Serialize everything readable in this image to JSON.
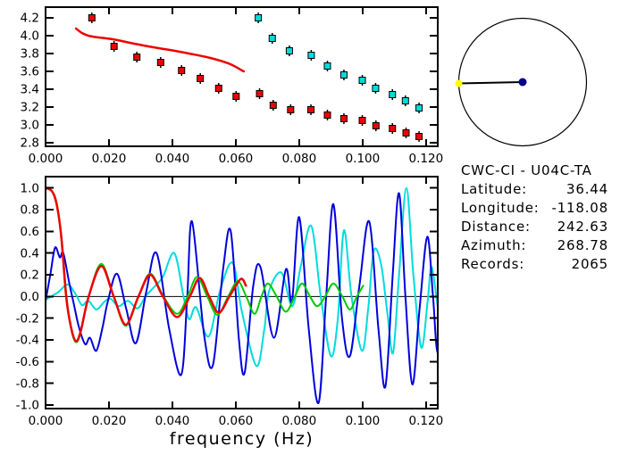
{
  "colors": {
    "red": "#ee0000",
    "green": "#00cc00",
    "blue": "#0000dd",
    "cyan": "#00dcdc",
    "black": "#000000",
    "event_dot": "#00008b",
    "station_dot": "#ffff00"
  },
  "station_info": {
    "title": "CWC-CI - U04C-TA",
    "rows": [
      {
        "label": "Latitude:",
        "value": "36.44"
      },
      {
        "label": "Longitude:",
        "value": "-118.08"
      },
      {
        "label": "Distance:",
        "value": "242.63"
      },
      {
        "label": "Azimuth:",
        "value": "268.78"
      },
      {
        "label": "Records:",
        "value": "2065"
      }
    ]
  },
  "map_panel": {
    "azimuth_deg": 268.78,
    "circle_color": "#000000",
    "event_dot_color": "#00008b",
    "station_dot_color": "#ffff00"
  },
  "chart_data": [
    {
      "id": "dispersion",
      "type": "scatter",
      "title": "",
      "xlabel": "",
      "ylabel": "",
      "xlim": [
        0,
        0.1237
      ],
      "ylim": [
        2.76,
        4.32
      ],
      "grid": false,
      "xticks": [
        {
          "v": 0.0,
          "label": "0.000"
        },
        {
          "v": 0.02,
          "label": "0.020"
        },
        {
          "v": 0.04,
          "label": "0.040"
        },
        {
          "v": 0.06,
          "label": "0.060"
        },
        {
          "v": 0.08,
          "label": "0.080"
        },
        {
          "v": 0.1,
          "label": "0.100"
        },
        {
          "v": 0.12,
          "label": "0.120"
        }
      ],
      "yticks": [
        {
          "v": 4.2,
          "label": "4.2"
        },
        {
          "v": 4.0,
          "label": "4.0"
        },
        {
          "v": 3.8,
          "label": "3.8"
        },
        {
          "v": 3.6,
          "label": "3.6"
        },
        {
          "v": 3.4,
          "label": "3.4"
        },
        {
          "v": 3.2,
          "label": "3.2"
        },
        {
          "v": 3.0,
          "label": "3.0"
        },
        {
          "v": 2.8,
          "label": "2.8"
        }
      ],
      "series": [
        {
          "name": "model-dispersion-curve",
          "type": "line",
          "color": "#ee0000",
          "stroke_width": 2.5,
          "points": [
            [
              0.0096,
              4.08
            ],
            [
              0.0115,
              4.03
            ],
            [
              0.014,
              3.995
            ],
            [
              0.018,
              3.975
            ],
            [
              0.022,
              3.955
            ],
            [
              0.028,
              3.91
            ],
            [
              0.034,
              3.87
            ],
            [
              0.04,
              3.835
            ],
            [
              0.046,
              3.795
            ],
            [
              0.052,
              3.75
            ],
            [
              0.058,
              3.685
            ],
            [
              0.0625,
              3.6
            ]
          ]
        },
        {
          "name": "measured-group-velocity-red",
          "type": "square-markers",
          "color": "#ee0000",
          "points": [
            [
              0.0146,
              4.2
            ],
            [
              0.0216,
              3.88
            ],
            [
              0.0288,
              3.76
            ],
            [
              0.0363,
              3.7
            ],
            [
              0.0429,
              3.61
            ],
            [
              0.0488,
              3.52
            ],
            [
              0.0546,
              3.41
            ],
            [
              0.0601,
              3.32
            ],
            [
              0.0675,
              3.35
            ],
            [
              0.0718,
              3.22
            ],
            [
              0.0773,
              3.17
            ],
            [
              0.0837,
              3.17
            ],
            [
              0.0889,
              3.11
            ],
            [
              0.0941,
              3.07
            ],
            [
              0.0999,
              3.05
            ],
            [
              0.1042,
              2.99
            ],
            [
              0.1094,
              2.96
            ],
            [
              0.1137,
              2.91
            ],
            [
              0.1178,
              2.87
            ]
          ]
        },
        {
          "name": "measured-group-velocity-cyan",
          "type": "square-markers",
          "color": "#00dcdc",
          "points": [
            [
              0.0671,
              4.2
            ],
            [
              0.0715,
              3.97
            ],
            [
              0.0769,
              3.83
            ],
            [
              0.0838,
              3.78
            ],
            [
              0.0889,
              3.66
            ],
            [
              0.0941,
              3.56
            ],
            [
              0.0999,
              3.5
            ],
            [
              0.1041,
              3.41
            ],
            [
              0.1094,
              3.34
            ],
            [
              0.1135,
              3.27
            ],
            [
              0.1178,
              3.19
            ]
          ]
        }
      ]
    },
    {
      "id": "spectra",
      "type": "line",
      "title": "",
      "xlabel": "frequency (Hz)",
      "ylabel": "",
      "xlim": [
        0,
        0.1237
      ],
      "ylim": [
        -1.033,
        1.104
      ],
      "zero_line": true,
      "grid": false,
      "xticks": [
        {
          "v": 0.0,
          "label": "0.000"
        },
        {
          "v": 0.02,
          "label": "0.020"
        },
        {
          "v": 0.04,
          "label": "0.040"
        },
        {
          "v": 0.06,
          "label": "0.060"
        },
        {
          "v": 0.08,
          "label": "0.080"
        },
        {
          "v": 0.1,
          "label": "0.100"
        },
        {
          "v": 0.12,
          "label": "0.120"
        }
      ],
      "yticks": [
        {
          "v": 1.0,
          "label": "1.0"
        },
        {
          "v": 0.8,
          "label": "0.8"
        },
        {
          "v": 0.6,
          "label": "0.6"
        },
        {
          "v": 0.4,
          "label": "0.4"
        },
        {
          "v": 0.2,
          "label": "0.2"
        },
        {
          "v": 0.0,
          "label": "0.0"
        },
        {
          "v": -0.2,
          "label": "-0.2"
        },
        {
          "v": -0.4,
          "label": "-0.4"
        },
        {
          "v": -0.6,
          "label": "-0.6"
        },
        {
          "v": -0.8,
          "label": "-0.8"
        },
        {
          "v": -1.0,
          "label": "-1.0"
        }
      ],
      "series": [
        {
          "name": "spectrum-cyan",
          "type": "line",
          "color": "#00dcdc",
          "stroke_width": 2,
          "points": [
            [
              0,
              -0.03
            ],
            [
              0.004,
              0.04
            ],
            [
              0.007,
              0.11
            ],
            [
              0.0095,
              0.02
            ],
            [
              0.0115,
              -0.08
            ],
            [
              0.0135,
              -0.04
            ],
            [
              0.016,
              -0.12
            ],
            [
              0.0185,
              -0.05
            ],
            [
              0.0205,
              -0.02
            ],
            [
              0.023,
              -0.09
            ],
            [
              0.026,
              -0.04
            ],
            [
              0.029,
              -0.11
            ],
            [
              0.0315,
              0.0
            ],
            [
              0.034,
              0.08
            ],
            [
              0.037,
              0.18
            ],
            [
              0.0406,
              0.4
            ],
            [
              0.0435,
              0.0
            ],
            [
              0.0453,
              -0.21
            ],
            [
              0.0475,
              -0.1
            ],
            [
              0.0514,
              -0.37
            ],
            [
              0.055,
              0.05
            ],
            [
              0.059,
              0.31
            ],
            [
              0.062,
              -0.15
            ],
            [
              0.0665,
              -0.64
            ],
            [
              0.069,
              -0.3
            ],
            [
              0.0705,
              0.05
            ],
            [
              0.0744,
              0.22
            ],
            [
              0.0778,
              -0.09
            ],
            [
              0.0805,
              0.28
            ],
            [
              0.0838,
              0.65
            ],
            [
              0.0868,
              0.0
            ],
            [
              0.09,
              -0.55
            ],
            [
              0.0922,
              -0.2
            ],
            [
              0.0941,
              0.61
            ],
            [
              0.0965,
              0.0
            ],
            [
              0.0998,
              -0.5
            ],
            [
              0.1018,
              -0.1
            ],
            [
              0.1035,
              0.42
            ],
            [
              0.1058,
              0.3
            ],
            [
              0.1078,
              -0.15
            ],
            [
              0.1096,
              -0.52
            ],
            [
              0.1115,
              0.2
            ],
            [
              0.1138,
              1.0
            ],
            [
              0.116,
              0.2
            ],
            [
              0.1185,
              -0.47
            ],
            [
              0.1205,
              -0.05
            ],
            [
              0.1218,
              0.27
            ],
            [
              0.1243,
              -0.2
            ],
            [
              0.126,
              -0.12
            ]
          ]
        },
        {
          "name": "spectrum-blue",
          "type": "line",
          "color": "#0000dd",
          "stroke_width": 2,
          "points": [
            [
              0,
              -0.04
            ],
            [
              0.0015,
              0.2
            ],
            [
              0.003,
              0.45
            ],
            [
              0.0045,
              0.36
            ],
            [
              0.0056,
              0.4
            ],
            [
              0.0075,
              0.12
            ],
            [
              0.009,
              -0.08
            ],
            [
              0.0105,
              -0.28
            ],
            [
              0.0125,
              -0.44
            ],
            [
              0.014,
              -0.38
            ],
            [
              0.016,
              -0.5
            ],
            [
              0.018,
              -0.28
            ],
            [
              0.0196,
              -0.05
            ],
            [
              0.0225,
              0.21
            ],
            [
              0.0255,
              -0.12
            ],
            [
              0.0285,
              -0.43
            ],
            [
              0.0318,
              0.05
            ],
            [
              0.035,
              0.4
            ],
            [
              0.039,
              -0.3
            ],
            [
              0.0428,
              -0.72
            ],
            [
              0.0447,
              0.0
            ],
            [
              0.0462,
              0.69
            ],
            [
              0.05,
              -0.35
            ],
            [
              0.0528,
              -0.63
            ],
            [
              0.056,
              0.25
            ],
            [
              0.0584,
              0.6
            ],
            [
              0.061,
              -0.4
            ],
            [
              0.0628,
              -0.7
            ],
            [
              0.0655,
              0.1
            ],
            [
              0.0678,
              0.27
            ],
            [
              0.072,
              -0.38
            ],
            [
              0.0758,
              0.25
            ],
            [
              0.0777,
              -0.05
            ],
            [
              0.08,
              0.73
            ],
            [
              0.083,
              -0.3
            ],
            [
              0.0861,
              -0.98
            ],
            [
              0.0885,
              0.0
            ],
            [
              0.0908,
              0.85
            ],
            [
              0.0935,
              -0.2
            ],
            [
              0.096,
              -0.55
            ],
            [
              0.099,
              0.1
            ],
            [
              0.1021,
              0.69
            ],
            [
              0.105,
              -0.3
            ],
            [
              0.1072,
              -0.83
            ],
            [
              0.1095,
              0.2
            ],
            [
              0.1115,
              0.95
            ],
            [
              0.1135,
              0.0
            ],
            [
              0.1157,
              -0.81
            ],
            [
              0.118,
              -0.1
            ],
            [
              0.1204,
              0.55
            ],
            [
              0.1222,
              0.0
            ],
            [
              0.1237,
              -0.52
            ],
            [
              0.126,
              -0.08
            ]
          ]
        },
        {
          "name": "spectrum-green",
          "type": "line",
          "color": "#00cc00",
          "stroke_width": 2,
          "points": [
            [
              0,
              1.0
            ],
            [
              0.002,
              0.97
            ],
            [
              0.0035,
              0.86
            ],
            [
              0.005,
              0.55
            ],
            [
              0.0066,
              0.0
            ],
            [
              0.008,
              -0.29
            ],
            [
              0.0095,
              -0.42
            ],
            [
              0.011,
              -0.34
            ],
            [
              0.0136,
              0.0
            ],
            [
              0.0176,
              0.3
            ],
            [
              0.0215,
              0.0
            ],
            [
              0.0253,
              -0.27
            ],
            [
              0.0293,
              0.0
            ],
            [
              0.033,
              0.21
            ],
            [
              0.0372,
              0.0
            ],
            [
              0.0415,
              -0.16
            ],
            [
              0.0448,
              0.0
            ],
            [
              0.0478,
              0.18
            ],
            [
              0.051,
              0.0
            ],
            [
              0.0542,
              -0.17
            ],
            [
              0.0576,
              0.0
            ],
            [
              0.0606,
              0.14
            ],
            [
              0.0633,
              0.0
            ],
            [
              0.0659,
              -0.16
            ],
            [
              0.0681,
              0.0
            ],
            [
              0.0701,
              0.12
            ],
            [
              0.0729,
              0.0
            ],
            [
              0.0758,
              -0.14
            ],
            [
              0.0786,
              0.0
            ],
            [
              0.0809,
              0.12
            ],
            [
              0.0834,
              0.0
            ],
            [
              0.0857,
              -0.09
            ],
            [
              0.0882,
              0.0
            ],
            [
              0.0908,
              0.12
            ],
            [
              0.0936,
              0.0
            ],
            [
              0.096,
              -0.12
            ],
            [
              0.0982,
              0.0
            ],
            [
              0.1002,
              0.1
            ]
          ]
        },
        {
          "name": "spectrum-red",
          "type": "line",
          "color": "#ee0000",
          "stroke_width": 2.5,
          "points": [
            [
              0,
              1.0
            ],
            [
              0.002,
              0.97
            ],
            [
              0.0035,
              0.85
            ],
            [
              0.005,
              0.54
            ],
            [
              0.0065,
              0.0
            ],
            [
              0.008,
              -0.28
            ],
            [
              0.0095,
              -0.41
            ],
            [
              0.011,
              -0.33
            ],
            [
              0.0136,
              0.0
            ],
            [
              0.0176,
              0.28
            ],
            [
              0.0215,
              0.0
            ],
            [
              0.0253,
              -0.26
            ],
            [
              0.0293,
              0.0
            ],
            [
              0.033,
              0.2
            ],
            [
              0.037,
              0.0
            ],
            [
              0.0415,
              -0.19
            ],
            [
              0.0455,
              0.0
            ],
            [
              0.0486,
              0.17
            ],
            [
              0.0516,
              0.0
            ],
            [
              0.0546,
              -0.15
            ],
            [
              0.058,
              0.0
            ],
            [
              0.0615,
              0.16
            ],
            [
              0.0632,
              0.1
            ]
          ]
        }
      ]
    }
  ]
}
